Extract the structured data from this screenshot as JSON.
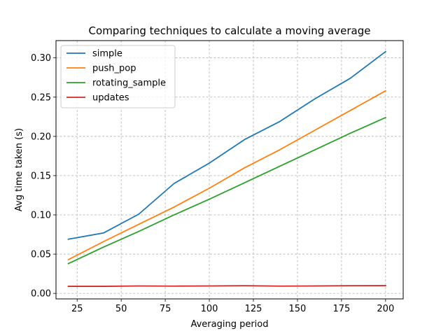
{
  "chart_data": {
    "type": "line",
    "title": "Comparing techniques to calculate a moving average",
    "xlabel": "Averaging period",
    "ylabel": "Avg time taken (s)",
    "x": [
      20,
      40,
      60,
      80,
      100,
      120,
      140,
      160,
      180,
      200
    ],
    "xlim": [
      13,
      210
    ],
    "ylim": [
      -0.007,
      0.322
    ],
    "xticks": [
      25,
      50,
      75,
      100,
      125,
      150,
      175,
      200
    ],
    "yticks": [
      0.0,
      0.05,
      0.1,
      0.15,
      0.2,
      0.25,
      0.3
    ],
    "ytick_labels": [
      "0.00",
      "0.05",
      "0.10",
      "0.15",
      "0.20",
      "0.25",
      "0.30"
    ],
    "grid": true,
    "grid_style": "dashed",
    "legend_position": "upper-left",
    "series": [
      {
        "name": "simple",
        "color": "#1f77b4",
        "values": [
          0.069,
          0.077,
          0.101,
          0.14,
          0.166,
          0.196,
          0.219,
          0.248,
          0.274,
          0.308
        ]
      },
      {
        "name": "push_pop",
        "color": "#ff7f0e",
        "values": [
          0.043,
          0.066,
          0.088,
          0.11,
          0.134,
          0.16,
          0.183,
          0.208,
          0.233,
          0.258
        ]
      },
      {
        "name": "rotating_sample",
        "color": "#2ca02c",
        "values": [
          0.038,
          0.059,
          0.079,
          0.1,
          0.12,
          0.141,
          0.162,
          0.183,
          0.204,
          0.224
        ]
      },
      {
        "name": "updates",
        "color": "#d62728",
        "values": [
          0.009,
          0.009,
          0.0095,
          0.0093,
          0.0095,
          0.0098,
          0.0093,
          0.0095,
          0.0098,
          0.0099
        ]
      }
    ]
  }
}
